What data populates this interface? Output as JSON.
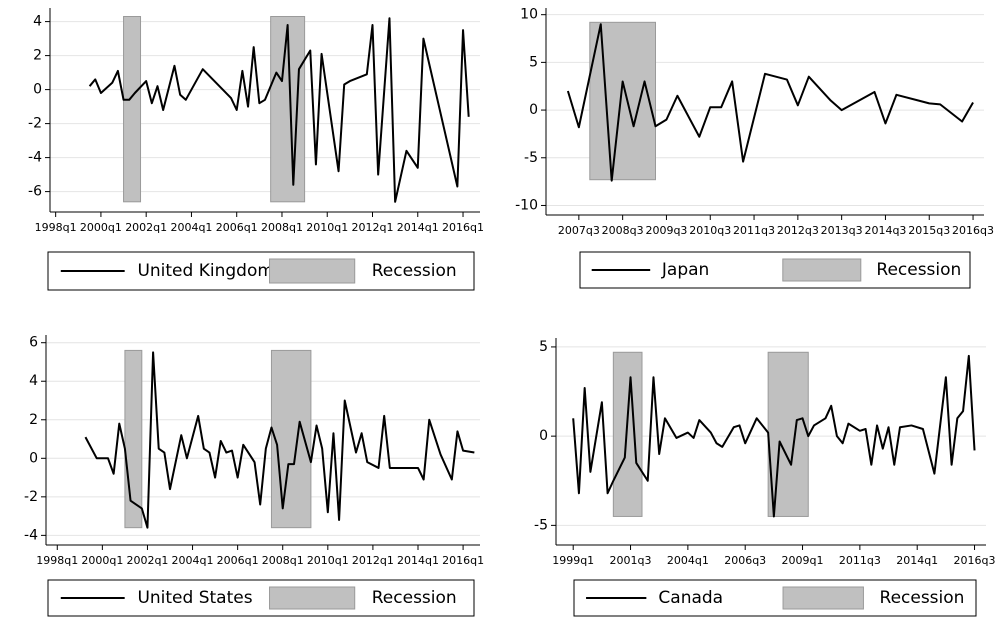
{
  "chart_data": [
    {
      "type": "line",
      "legend": true,
      "grid": true,
      "xlim": [
        "1997q4",
        "2016q4"
      ],
      "xticks": [
        "1998q1",
        "2000q1",
        "2002q1",
        "2004q1",
        "2006q1",
        "2008q1",
        "2010q1",
        "2012q1",
        "2014q1",
        "2016q1"
      ],
      "ylim": [
        -7.2,
        4.8
      ],
      "yticks": [
        -6,
        -4,
        -2,
        0,
        2,
        4
      ],
      "series": [
        {
          "name": "United Kingdom",
          "color": "#000000",
          "x": [
            "1999q3",
            "1999q4",
            "2000q1",
            "2000q3",
            "2000q4",
            "2001q1",
            "2001q2",
            "2001q3",
            "2002q1",
            "2002q2",
            "2002q3",
            "2002q4",
            "2003q2",
            "2003q3",
            "2003q4",
            "2004q3",
            "2005q4",
            "2006q1",
            "2006q2",
            "2006q3",
            "2006q4",
            "2007q1",
            "2007q2",
            "2007q4",
            "2008q1",
            "2008q2",
            "2008q3",
            "2008q4",
            "2009q2",
            "2009q3",
            "2009q4",
            "2010q3",
            "2010q4",
            "2011q1",
            "2011q4",
            "2012q1",
            "2012q2",
            "2012q4",
            "2013q1",
            "2013q3",
            "2014q1",
            "2014q2",
            "2015q4",
            "2016q1",
            "2016q2"
          ],
          "values": [
            0.2,
            0.6,
            -0.2,
            0.4,
            1.1,
            -0.6,
            -0.6,
            -0.2,
            0.5,
            -0.8,
            0.2,
            -1.2,
            1.4,
            -0.3,
            -0.6,
            1.2,
            -0.5,
            -1.2,
            1.1,
            -1.0,
            2.5,
            -0.8,
            -0.6,
            1.0,
            0.5,
            3.8,
            -5.6,
            1.2,
            2.3,
            -4.4,
            2.1,
            -4.8,
            0.3,
            0.5,
            0.9,
            3.8,
            -5.0,
            4.2,
            -6.6,
            -3.6,
            -4.6,
            3.0,
            -5.7,
            3.5,
            -1.6
          ]
        }
      ],
      "recession": {
        "name": "Recession",
        "color": "#c0c0c0",
        "band": [
          -6.6,
          4.3
        ],
        "periods": [
          {
            "start": "2001q1",
            "end": "2001q4"
          },
          {
            "start": "2007q3",
            "end": "2009q1"
          }
        ]
      }
    },
    {
      "type": "line",
      "legend": true,
      "grid": true,
      "xlim": [
        "2006q4",
        "2016q4"
      ],
      "xticks": [
        "2007q3",
        "2008q3",
        "2009q3",
        "2010q3",
        "2011q3",
        "2012q3",
        "2013q3",
        "2014q3",
        "2015q3",
        "2016q3"
      ],
      "ylim": [
        -11,
        10.7
      ],
      "yticks": [
        -10,
        -5,
        0,
        5,
        10
      ],
      "series": [
        {
          "name": "Japan",
          "color": "#000000",
          "x": [
            "2007q2",
            "2007q3",
            "2008q1",
            "2008q2",
            "2008q3",
            "2008q4",
            "2009q1",
            "2009q2",
            "2009q3",
            "2009q4",
            "2010q2",
            "2010q3",
            "2010q4",
            "2011q1",
            "2011q2",
            "2011q4",
            "2012q2",
            "2012q3",
            "2012q4",
            "2013q2",
            "2013q3",
            "2014q2",
            "2014q3",
            "2014q4",
            "2015q2",
            "2015q3",
            "2015q4",
            "2016q2",
            "2016q3"
          ],
          "values": [
            2.0,
            -1.8,
            9.0,
            -7.4,
            3.0,
            -1.7,
            3.0,
            -1.7,
            -1.0,
            1.5,
            -2.8,
            0.3,
            0.3,
            3.0,
            -5.4,
            3.8,
            3.2,
            0.5,
            3.5,
            1.0,
            0.0,
            1.9,
            -1.4,
            1.6,
            1.0,
            0.7,
            0.6,
            -1.2,
            0.8
          ]
        }
      ],
      "recession": {
        "name": "Recession",
        "color": "#c0c0c0",
        "band": [
          -7.3,
          9.2
        ],
        "periods": [
          {
            "start": "2007q4",
            "end": "2009q2"
          }
        ]
      }
    },
    {
      "type": "line",
      "legend": true,
      "grid": true,
      "xlim": [
        "1997q3",
        "2016q4"
      ],
      "xticks": [
        "1998q1",
        "2000q1",
        "2002q1",
        "2004q1",
        "2006q1",
        "2008q1",
        "2010q1",
        "2012q1",
        "2014q1",
        "2016q1"
      ],
      "ylim": [
        -4.5,
        6.4
      ],
      "yticks": [
        -4,
        -2,
        0,
        2,
        4,
        6
      ],
      "series": [
        {
          "name": "United States",
          "color": "#000000",
          "x": [
            "1999q2",
            "1999q4",
            "2000q1",
            "2000q2",
            "2000q3",
            "2000q4",
            "2001q1",
            "2001q2",
            "2001q3",
            "2001q4",
            "2002q1",
            "2002q2",
            "2002q3",
            "2002q4",
            "2003q1",
            "2003q3",
            "2003q4",
            "2004q2",
            "2004q3",
            "2004q4",
            "2005q1",
            "2005q2",
            "2005q3",
            "2005q4",
            "2006q1",
            "2006q2",
            "2006q4",
            "2007q1",
            "2007q2",
            "2007q3",
            "2007q4",
            "2008q1",
            "2008q2",
            "2008q3",
            "2008q4",
            "2009q2",
            "2009q3",
            "2009q4",
            "2010q1",
            "2010q2",
            "2010q3",
            "2010q4",
            "2011q2",
            "2011q3",
            "2011q4",
            "2012q2",
            "2012q3",
            "2012q4",
            "2014q1",
            "2014q2",
            "2014q3",
            "2015q1",
            "2015q3",
            "2015q4",
            "2016q1",
            "2016q3"
          ],
          "values": [
            1.1,
            0,
            0,
            0,
            -0.8,
            1.8,
            0.5,
            -2.2,
            -2.4,
            -2.6,
            -3.6,
            5.5,
            0.5,
            0.3,
            -1.6,
            1.2,
            0,
            2.2,
            0.5,
            0.3,
            -1.0,
            0.9,
            0.3,
            0.4,
            -1.0,
            0.7,
            -0.2,
            -2.4,
            0.5,
            1.6,
            0.7,
            -2.6,
            -0.3,
            -0.3,
            1.9,
            -0.2,
            1.7,
            0.5,
            -2.8,
            1.3,
            -3.2,
            3.0,
            0.3,
            1.3,
            -0.2,
            -0.5,
            2.2,
            -0.5,
            -0.5,
            -1.1,
            2.0,
            0.2,
            -1.1,
            1.4,
            0.4,
            0.3
          ]
        }
      ],
      "recession": {
        "name": "Recession",
        "color": "#c0c0c0",
        "band": [
          -3.6,
          5.6
        ],
        "periods": [
          {
            "start": "2001q1",
            "end": "2001q4"
          },
          {
            "start": "2007q3",
            "end": "2009q2"
          }
        ]
      }
    },
    {
      "type": "line",
      "legend": true,
      "grid": true,
      "xlim": [
        "1998q2",
        "2017q1"
      ],
      "xticks": [
        "1999q1",
        "2001q3",
        "2004q1",
        "2006q3",
        "2009q1",
        "2011q3",
        "2014q1",
        "2016q3"
      ],
      "ylim": [
        -6.1,
        5.5
      ],
      "yticks": [
        -5,
        0,
        5
      ],
      "series": [
        {
          "name": "Canada",
          "color": "#000000",
          "x": [
            "1999q1",
            "1999q2",
            "1999q3",
            "1999q4",
            "2000q2",
            "2000q3",
            "2000q4",
            "2001q2",
            "2001q3",
            "2001q4",
            "2002q2",
            "2002q3",
            "2002q4",
            "2003q1",
            "2003q3",
            "2004q1",
            "2004q2",
            "2004q3",
            "2005q1",
            "2005q2",
            "2005q3",
            "2006q1",
            "2006q2",
            "2006q3",
            "2007q1",
            "2007q3",
            "2007q4",
            "2008q1",
            "2008q3",
            "2008q4",
            "2009q1",
            "2009q2",
            "2009q3",
            "2010q1",
            "2010q2",
            "2010q3",
            "2010q4",
            "2011q1",
            "2011q3",
            "2011q4",
            "2012q1",
            "2012q2",
            "2012q3",
            "2012q4",
            "2013q1",
            "2013q2",
            "2013q4",
            "2014q2",
            "2014q4",
            "2015q2",
            "2015q3",
            "2015q4",
            "2016q1",
            "2016q2",
            "2016q3"
          ],
          "values": [
            1.0,
            -3.2,
            2.7,
            -2.0,
            1.9,
            -3.2,
            -2.5,
            -1.2,
            3.3,
            -1.5,
            -2.5,
            3.3,
            -1.0,
            1.0,
            -0.1,
            0.2,
            -0.1,
            0.9,
            0.2,
            -0.4,
            -0.6,
            0.5,
            0.6,
            -0.4,
            1.0,
            0.2,
            -4.5,
            -0.3,
            -1.6,
            0.9,
            1.0,
            0.0,
            0.6,
            1.0,
            1.7,
            0,
            -0.4,
            0.7,
            0.3,
            0.4,
            -1.6,
            0.6,
            -0.7,
            0.5,
            -1.6,
            0.5,
            0.6,
            0.4,
            -2.1,
            3.3,
            -1.6,
            1.0,
            1.4,
            4.5,
            -0.8
          ]
        }
      ],
      "recession": {
        "name": "Recession",
        "color": "#c0c0c0",
        "band": [
          -4.5,
          4.7
        ],
        "periods": [
          {
            "start": "2000q4",
            "end": "2002q1"
          },
          {
            "start": "2007q3",
            "end": "2009q2"
          }
        ]
      }
    }
  ]
}
